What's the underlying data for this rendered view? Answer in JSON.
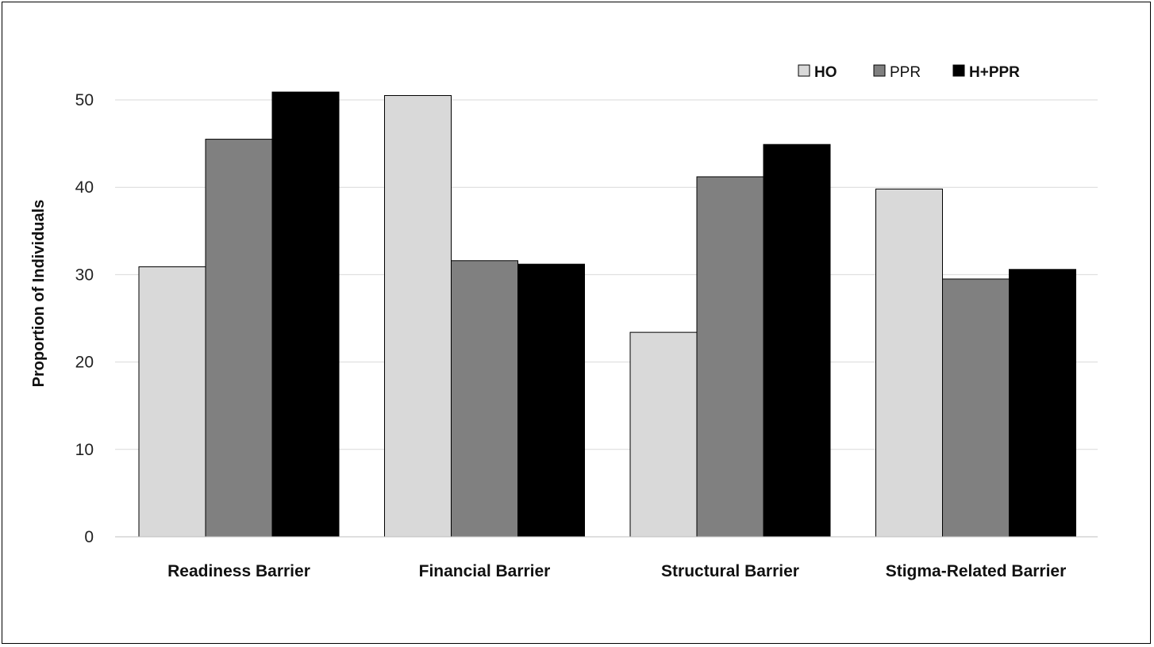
{
  "chart_data": {
    "type": "bar",
    "categories": [
      "Readiness Barrier",
      "Financial Barrier",
      "Structural Barrier",
      "Stigma-Related Barrier"
    ],
    "series": [
      {
        "name": "HO",
        "values": [
          30.9,
          50.5,
          23.4,
          39.8
        ],
        "color": "#d9d9d9",
        "legend_bold": true
      },
      {
        "name": "PPR",
        "values": [
          45.5,
          31.6,
          41.2,
          29.5
        ],
        "color": "#808080",
        "legend_bold": false
      },
      {
        "name": "H+PPR",
        "values": [
          50.9,
          31.2,
          44.9,
          30.6
        ],
        "color": "#000000",
        "legend_bold": true
      }
    ],
    "ylabel": "Proportion of Individuals",
    "xlabel": "",
    "ylim": [
      0,
      55
    ],
    "yticks": [
      0,
      10,
      20,
      30,
      40,
      50
    ],
    "grid": true,
    "legend": "top-right"
  }
}
